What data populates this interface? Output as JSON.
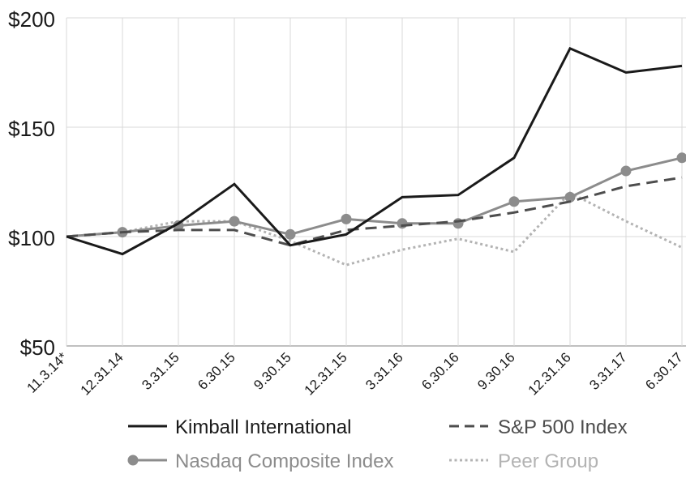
{
  "chart_data": {
    "type": "line",
    "categories": [
      "11.3.14*",
      "12.31.14",
      "3.31.15",
      "6.30.15",
      "9.30.15",
      "12.31.15",
      "3.31.16",
      "6.30.16",
      "9.30.16",
      "12.31.16",
      "3.31.17",
      "6.30.17"
    ],
    "yticks": [
      "$50",
      "$100",
      "$150",
      "$200"
    ],
    "ylim": [
      50,
      200
    ],
    "grid": true,
    "legend_position": "bottom",
    "series": [
      {
        "name": "Kimball International",
        "color": "#1a1a1a",
        "style": "solid",
        "markers": false,
        "values": [
          100,
          92,
          106,
          124,
          96,
          101,
          118,
          119,
          136,
          186,
          175,
          178
        ]
      },
      {
        "name": "S&P 500 Index",
        "color": "#4d4d4d",
        "style": "dashed",
        "markers": false,
        "values": [
          100,
          102,
          103,
          103,
          96,
          103,
          105,
          107,
          111,
          116,
          123,
          127
        ]
      },
      {
        "name": "Nasdaq Composite Index",
        "color": "#8c8c8c",
        "style": "solid",
        "markers": true,
        "values": [
          100,
          102,
          105,
          107,
          101,
          108,
          106,
          106,
          116,
          118,
          130,
          136
        ]
      },
      {
        "name": "Peer Group",
        "color": "#b3b3b3",
        "style": "dotted",
        "markers": false,
        "values": [
          100,
          102,
          107,
          107,
          98,
          87,
          94,
          99,
          93,
          120,
          107,
          95
        ]
      }
    ]
  }
}
